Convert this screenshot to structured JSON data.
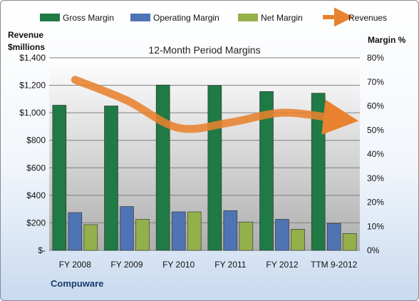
{
  "chart_data": {
    "type": "bar",
    "title": "12-Month Period Margins",
    "categories": [
      "FY 2008",
      "FY 2009",
      "FY 2010",
      "FY 2011",
      "FY 2012",
      "TTM 9-2012"
    ],
    "left_axis": {
      "label_line1": "Revenue",
      "label_line2": "$millions",
      "range": [
        0,
        1400
      ],
      "ticks": [
        "$-",
        "$200",
        "$400",
        "$600",
        "$800",
        "$1,000",
        "$1,200",
        "$1,400"
      ]
    },
    "right_axis": {
      "label": "Margin %",
      "range": [
        0,
        80
      ],
      "ticks": [
        "0%",
        "10%",
        "20%",
        "30%",
        "40%",
        "50%",
        "60%",
        "70%",
        "80%"
      ]
    },
    "series": [
      {
        "name": "Gross Margin",
        "axis": "right",
        "color": "#1f7a45",
        "values": [
          60.3,
          60.0,
          68.7,
          68.5,
          66.0,
          65.3
        ]
      },
      {
        "name": "Operating Margin",
        "axis": "right",
        "color": "#4f74b3",
        "values": [
          15.7,
          18.2,
          16.0,
          16.5,
          12.9,
          11.2
        ]
      },
      {
        "name": "Net Margin",
        "axis": "right",
        "color": "#93b04b",
        "values": [
          10.7,
          12.9,
          16.0,
          11.8,
          8.8,
          7.0
        ]
      },
      {
        "name": "Revenues",
        "axis": "left",
        "type": "line",
        "color": "#e8822e",
        "values": [
          1240,
          1090,
          890,
          930,
          1000,
          960
        ]
      }
    ],
    "grid": true,
    "legend_position": "top",
    "footer": "Compuware"
  }
}
